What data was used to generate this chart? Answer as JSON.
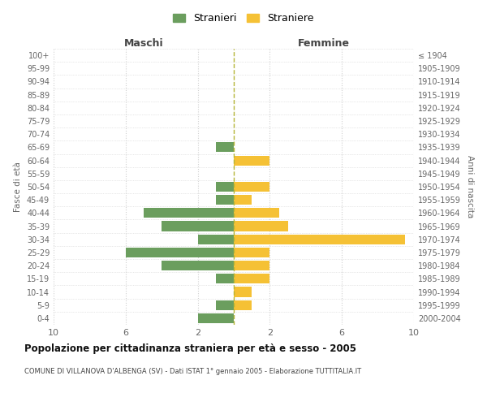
{
  "age_groups": [
    "0-4",
    "5-9",
    "10-14",
    "15-19",
    "20-24",
    "25-29",
    "30-34",
    "35-39",
    "40-44",
    "45-49",
    "50-54",
    "55-59",
    "60-64",
    "65-69",
    "70-74",
    "75-79",
    "80-84",
    "85-89",
    "90-94",
    "95-99",
    "100+"
  ],
  "birth_years": [
    "2000-2004",
    "1995-1999",
    "1990-1994",
    "1985-1989",
    "1980-1984",
    "1975-1979",
    "1970-1974",
    "1965-1969",
    "1960-1964",
    "1955-1959",
    "1950-1954",
    "1945-1949",
    "1940-1944",
    "1935-1939",
    "1930-1934",
    "1925-1929",
    "1920-1924",
    "1915-1919",
    "1910-1914",
    "1905-1909",
    "≤ 1904"
  ],
  "males": [
    2,
    1,
    0,
    1,
    4,
    6,
    2,
    4,
    5,
    1,
    1,
    0,
    0,
    1,
    0,
    0,
    0,
    0,
    0,
    0,
    0
  ],
  "females": [
    0,
    1,
    1,
    2,
    2,
    2,
    9.5,
    3,
    2.5,
    1,
    2,
    0,
    2,
    0,
    0,
    0,
    0,
    0,
    0,
    0,
    0
  ],
  "male_color": "#6b9e5e",
  "female_color": "#f5c135",
  "dashed_line_color": "#b5b535",
  "title": "Popolazione per cittadinanza straniera per età e sesso - 2005",
  "subtitle": "COMUNE DI VILLANOVA D'ALBENGA (SV) - Dati ISTAT 1° gennaio 2005 - Elaborazione TUTTITALIA.IT",
  "xlabel_left": "Maschi",
  "xlabel_right": "Femmine",
  "ylabel_left": "Fasce di età",
  "ylabel_right": "Anni di nascita",
  "legend_male": "Stranieri",
  "legend_female": "Straniere",
  "xlim": 10,
  "background_color": "#ffffff",
  "grid_color": "#d0d0d0"
}
